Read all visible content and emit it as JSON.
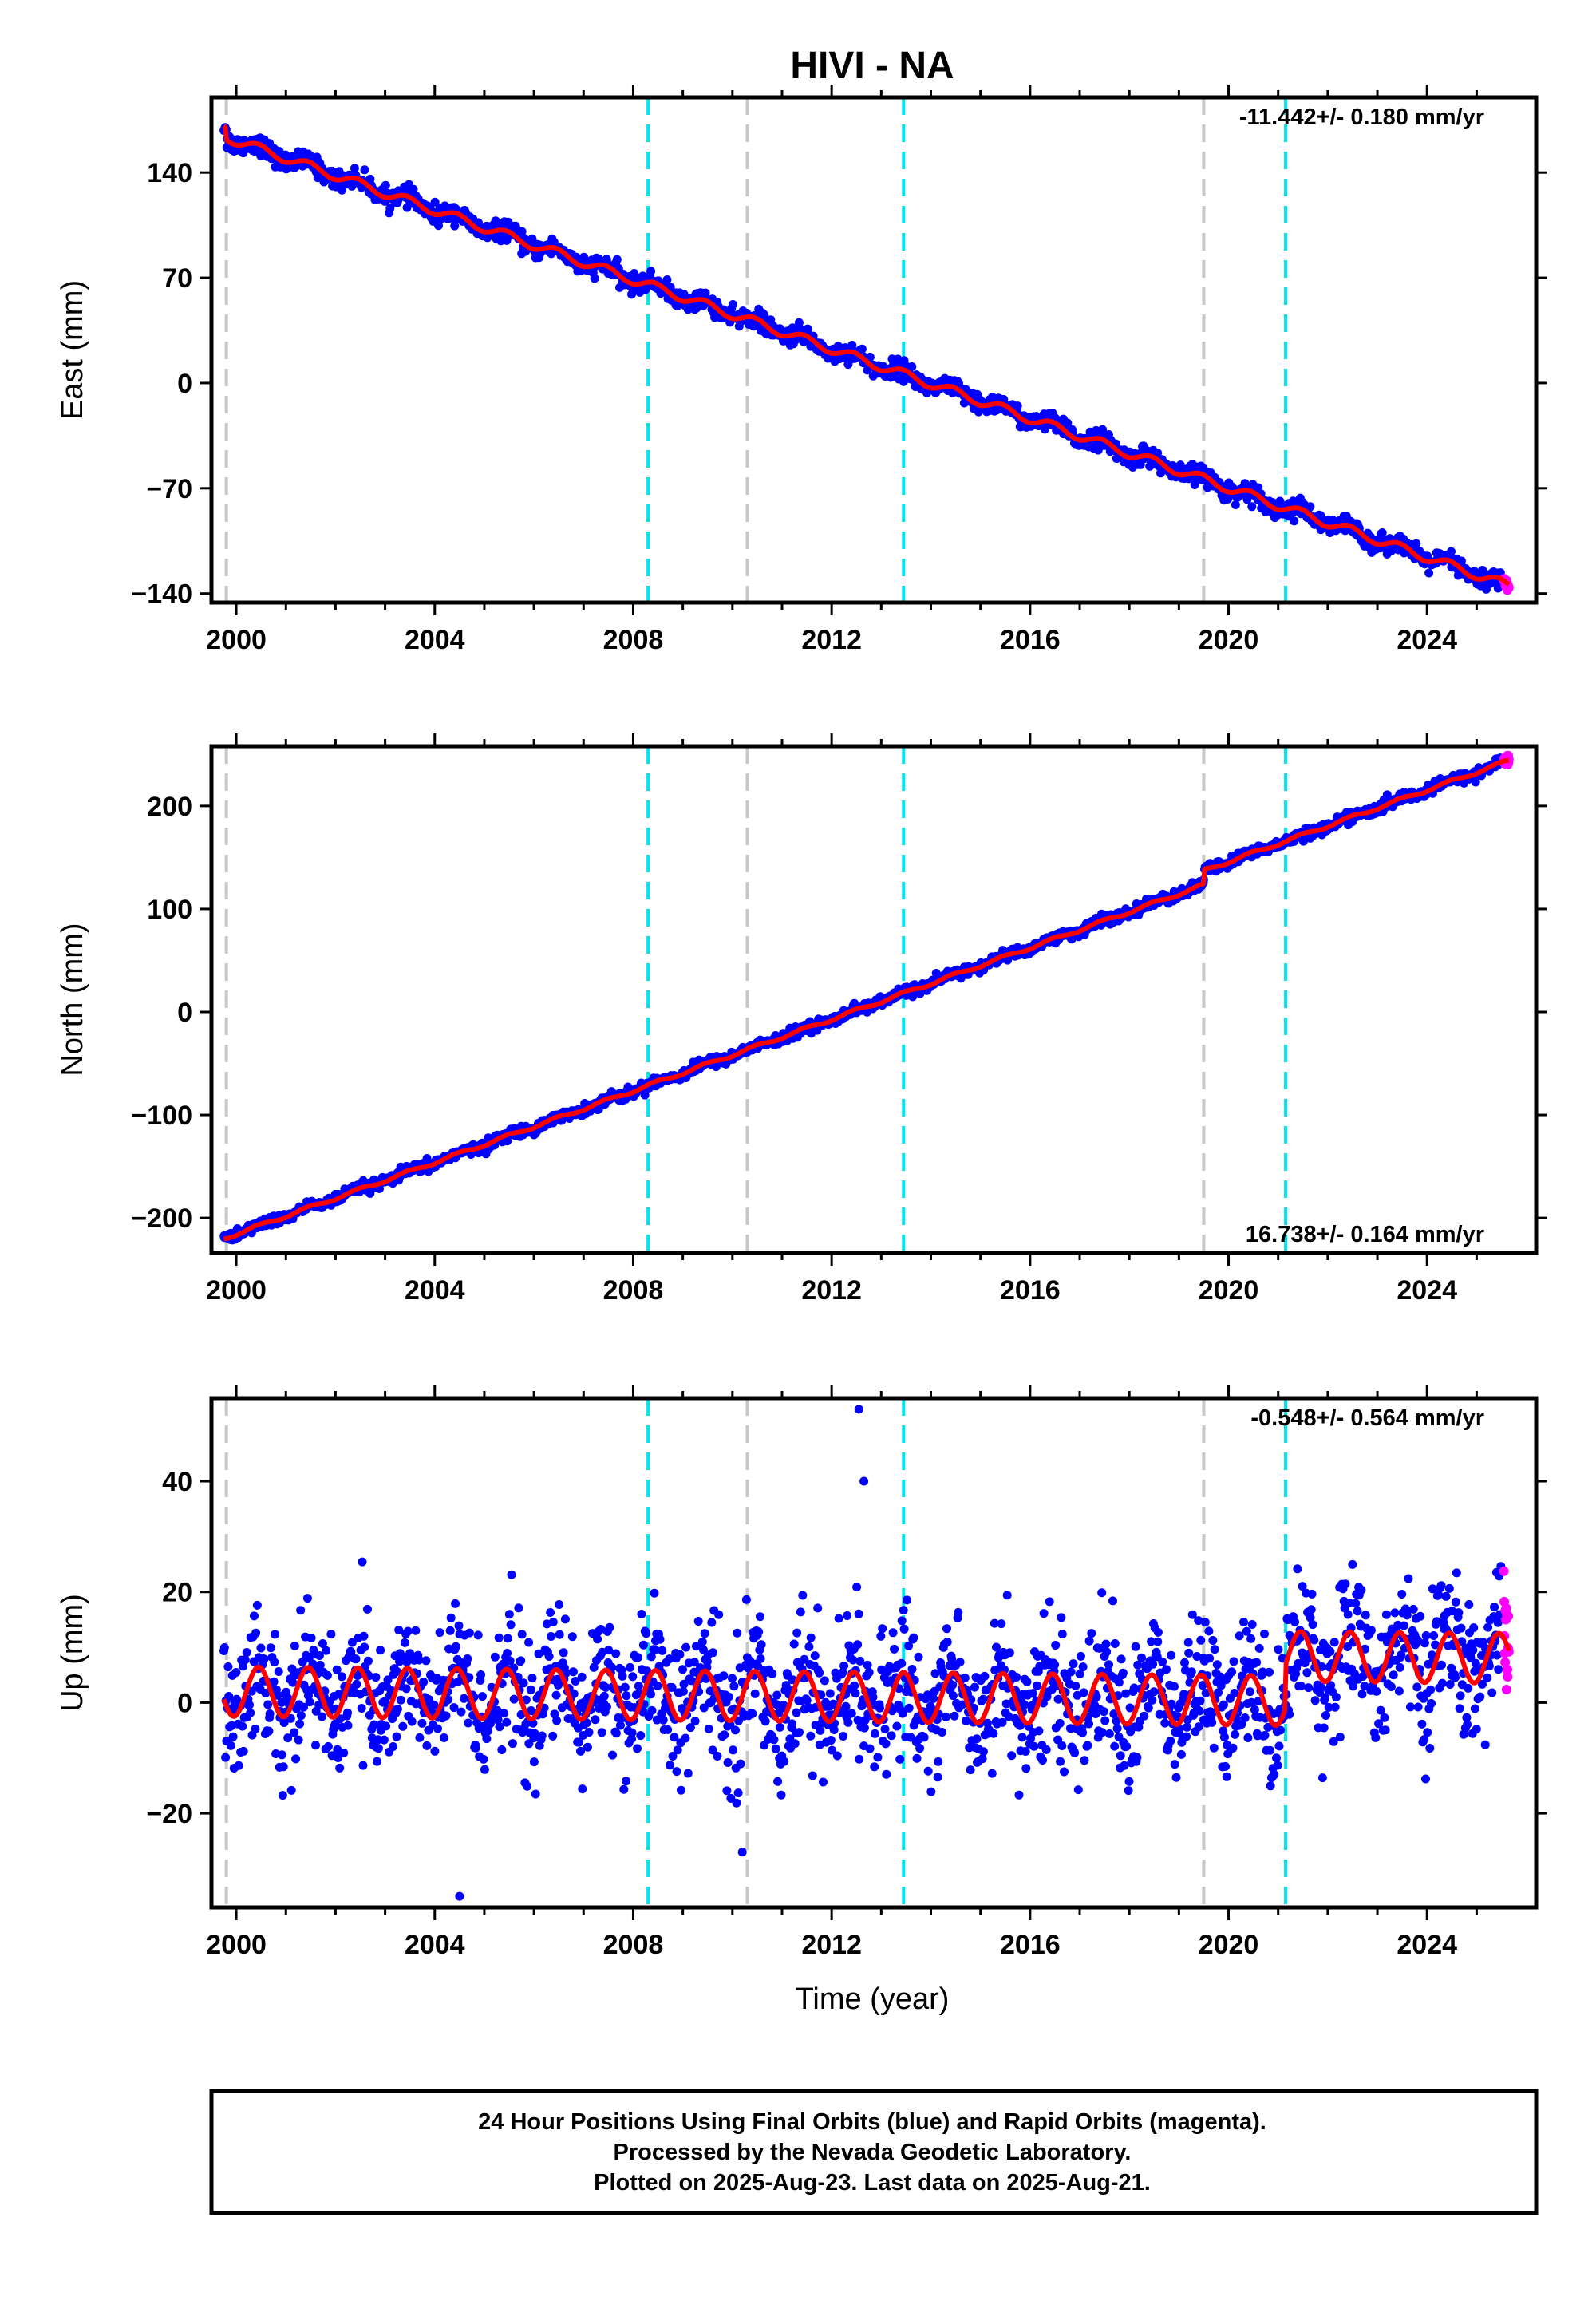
{
  "title": "HIVI - NA",
  "colors": {
    "final_orbits": "#0000ff",
    "rapid_orbits": "#ff00ff",
    "model": "#ff0000",
    "equipment_change": "#c8c8c8",
    "earthquake": "#00e5ee"
  },
  "chart_data": [
    {
      "type": "scatter",
      "component": "east",
      "ylabel": "East (mm)",
      "xlim": [
        1999.5,
        2026.2
      ],
      "ylim": [
        -146,
        190
      ],
      "yticks": [
        -140,
        -70,
        0,
        70,
        140
      ],
      "ytick_labels": [
        "−140",
        "−70",
        "0",
        "70",
        "140"
      ],
      "xticks": [
        2000,
        2004,
        2008,
        2012,
        2016,
        2020,
        2024
      ],
      "xtick_labels": [
        "2000",
        "2004",
        "2008",
        "2012",
        "2016",
        "2020",
        "2024"
      ],
      "rate_label": "-11.442+/- 0.180 mm/yr",
      "rate_position": "top-right",
      "series": [
        {
          "role": "final_orbits",
          "start": [
            1999.75,
            180
          ],
          "end": [
            2025.5,
            -134
          ],
          "scatter_sd": 3
        },
        {
          "role": "rapid_orbits",
          "start": [
            2025.55,
            -134
          ],
          "end": [
            2025.65,
            -135
          ],
          "scatter_sd": 2
        },
        {
          "role": "model",
          "start": [
            1999.75,
            172
          ],
          "end": [
            2025.65,
            -135
          ]
        }
      ],
      "offsets": [
        {
          "x": 1999.8,
          "dy": -8
        }
      ],
      "annual_amplitude": 3.0,
      "equipment_change_lines": [
        1999.8,
        2010.3,
        2019.5
      ],
      "earthquake_lines": [
        2008.3,
        2013.45,
        2021.15
      ]
    },
    {
      "type": "scatter",
      "component": "north",
      "ylabel": "North (mm)",
      "xlim": [
        1999.5,
        2026.2
      ],
      "ylim": [
        -234,
        258
      ],
      "yticks": [
        -200,
        -100,
        0,
        100,
        200
      ],
      "ytick_labels": [
        "−200",
        "−100",
        "0",
        "100",
        "200"
      ],
      "xticks": [
        2000,
        2004,
        2008,
        2012,
        2016,
        2020,
        2024
      ],
      "xtick_labels": [
        "2000",
        "2004",
        "2008",
        "2012",
        "2016",
        "2020",
        "2024"
      ],
      "rate_label": "16.738+/- 0.164 mm/yr",
      "rate_position": "bottom-right",
      "series": [
        {
          "role": "final_orbits",
          "start": [
            1999.75,
            -220
          ],
          "end": [
            2025.5,
            243
          ],
          "scatter_sd": 2.5
        },
        {
          "role": "rapid_orbits",
          "start": [
            2025.55,
            243
          ],
          "end": [
            2025.65,
            245
          ],
          "scatter_sd": 2
        },
        {
          "role": "model",
          "start": [
            1999.75,
            -220
          ],
          "end": [
            2025.65,
            244
          ]
        }
      ],
      "offsets": [
        {
          "x": 2019.5,
          "dy": 14
        }
      ],
      "annual_amplitude": 1.5,
      "equipment_change_lines": [
        1999.8,
        2010.3,
        2019.5
      ],
      "earthquake_lines": [
        2008.3,
        2013.45,
        2021.15
      ]
    },
    {
      "type": "scatter",
      "component": "up",
      "ylabel": "Up (mm)",
      "xlim": [
        1999.5,
        2026.2
      ],
      "ylim": [
        -37,
        55
      ],
      "yticks": [
        -20,
        0,
        20,
        40
      ],
      "ytick_labels": [
        "−20",
        "0",
        "20",
        "40"
      ],
      "xticks": [
        2000,
        2004,
        2008,
        2012,
        2016,
        2020,
        2024
      ],
      "xtick_labels": [
        "2000",
        "2004",
        "2008",
        "2012",
        "2016",
        "2020",
        "2024"
      ],
      "xlabel": "Time (year)",
      "rate_label": "-0.548+/- 0.564 mm/yr",
      "rate_position": "top-right",
      "series": [
        {
          "role": "final_orbits",
          "start": [
            1999.75,
            2
          ],
          "end": [
            2025.5,
            8
          ],
          "scatter_sd": 6
        },
        {
          "role": "rapid_orbits",
          "start": [
            2025.55,
            10
          ],
          "end": [
            2025.65,
            12
          ],
          "scatter_sd": 5
        },
        {
          "role": "model",
          "start": [
            1999.75,
            2
          ],
          "end": [
            2025.65,
            8
          ]
        }
      ],
      "offsets": [
        {
          "x": 2021.15,
          "dy": 8
        }
      ],
      "annual_amplitude": 4.5,
      "outliers": [
        [
          2012.55,
          53
        ],
        [
          2012.65,
          40
        ],
        [
          2004.5,
          -35
        ],
        [
          2010.2,
          -27
        ]
      ],
      "equipment_change_lines": [
        1999.8,
        2010.3,
        2019.5
      ],
      "earthquake_lines": [
        2008.3,
        2013.45,
        2021.15
      ]
    }
  ],
  "footer": {
    "line1": "24 Hour Positions Using Final Orbits (blue) and Rapid Orbits (magenta).",
    "line2": "Processed by the Nevada Geodetic Laboratory.",
    "line3": "Plotted on 2025-Aug-23. Last data on 2025-Aug-21."
  }
}
